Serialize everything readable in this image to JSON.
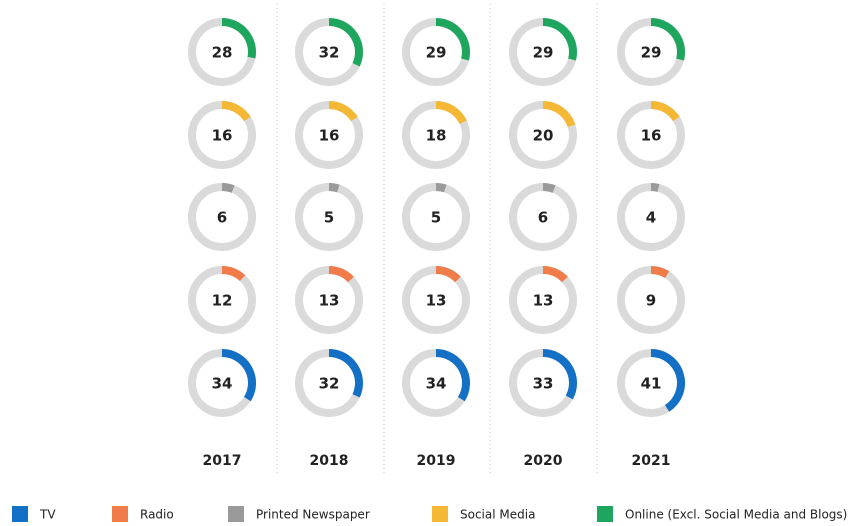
{
  "chart_data": {
    "type": "donut-grid",
    "categories": [
      "2017",
      "2018",
      "2019",
      "2020",
      "2021"
    ],
    "series": [
      {
        "name": "TV",
        "color": "#1470c4",
        "values": [
          34,
          32,
          34,
          33,
          41
        ]
      },
      {
        "name": "Radio",
        "color": "#f07c4a",
        "values": [
          12,
          13,
          13,
          13,
          9
        ]
      },
      {
        "name": "Printed Newspaper",
        "color": "#9a9a9a",
        "values": [
          6,
          5,
          5,
          6,
          4
        ]
      },
      {
        "name": "Social Media",
        "color": "#f5b835",
        "values": [
          16,
          16,
          18,
          20,
          16
        ]
      },
      {
        "name": "Online (Excl. Social Media and Blogs)",
        "color": "#1fa65e",
        "values": [
          28,
          32,
          29,
          29,
          29
        ]
      }
    ],
    "ylim": [
      0,
      100
    ]
  }
}
